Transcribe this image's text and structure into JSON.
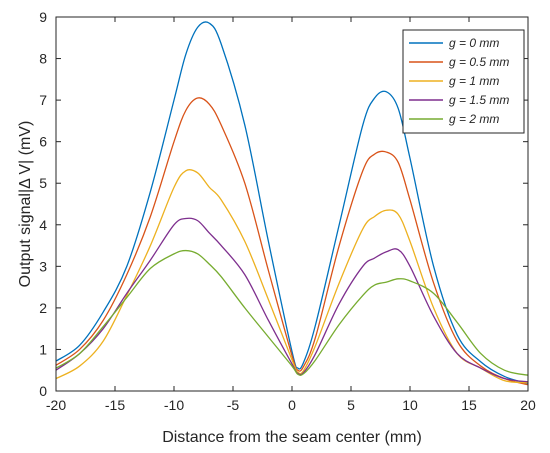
{
  "chart_data": {
    "type": "line",
    "xlabel": "Distance from the seam center (mm)",
    "ylabel": "Output signal|Δ V| (mV)",
    "xlim": [
      -20,
      20
    ],
    "ylim": [
      0,
      9
    ],
    "xticks": [
      -20,
      -15,
      -10,
      -5,
      0,
      5,
      10,
      15,
      20
    ],
    "yticks": [
      0,
      1,
      2,
      3,
      4,
      5,
      6,
      7,
      8,
      9
    ],
    "grid": false,
    "legend_position": "top-right",
    "x": [
      -20,
      -18,
      -16,
      -14,
      -12,
      -10,
      -9,
      -8,
      -7,
      -6,
      -4,
      -2,
      0,
      0.5,
      1,
      2,
      4,
      6,
      7,
      8,
      9,
      10,
      12,
      14,
      16,
      18,
      20
    ],
    "series": [
      {
        "name": "g = 0 mm",
        "color": "#0072BD",
        "values": [
          0.72,
          1.1,
          1.9,
          3.0,
          4.8,
          7.0,
          8.1,
          8.75,
          8.85,
          8.35,
          6.4,
          3.6,
          0.95,
          0.55,
          0.7,
          1.6,
          4.0,
          6.4,
          7.05,
          7.2,
          6.8,
          5.6,
          3.0,
          1.35,
          0.7,
          0.35,
          0.18
        ]
      },
      {
        "name": "g = 0.5 mm",
        "color": "#D95319",
        "values": [
          0.62,
          1.0,
          1.7,
          2.8,
          4.2,
          6.0,
          6.75,
          7.05,
          6.9,
          6.4,
          5.0,
          2.9,
          0.85,
          0.5,
          0.6,
          1.3,
          3.5,
          5.3,
          5.7,
          5.75,
          5.5,
          4.6,
          2.6,
          1.2,
          0.6,
          0.3,
          0.15
        ]
      },
      {
        "name": "g = 1 mm",
        "color": "#EDB120",
        "values": [
          0.3,
          0.6,
          1.2,
          2.3,
          3.5,
          4.9,
          5.3,
          5.25,
          4.9,
          4.6,
          3.6,
          2.2,
          0.75,
          0.45,
          0.5,
          1.1,
          2.6,
          3.9,
          4.2,
          4.35,
          4.25,
          3.6,
          2.0,
          0.9,
          0.55,
          0.25,
          0.2
        ]
      },
      {
        "name": "g = 1.5 mm",
        "color": "#7E2F8E",
        "values": [
          0.5,
          0.9,
          1.5,
          2.35,
          3.15,
          4.0,
          4.15,
          4.1,
          3.8,
          3.5,
          2.8,
          1.7,
          0.65,
          0.42,
          0.45,
          0.9,
          2.1,
          3.0,
          3.2,
          3.35,
          3.4,
          3.0,
          1.8,
          0.9,
          0.55,
          0.3,
          0.22
        ]
      },
      {
        "name": "g = 2 mm",
        "color": "#77AC30",
        "values": [
          0.55,
          0.9,
          1.55,
          2.25,
          2.95,
          3.3,
          3.38,
          3.3,
          3.05,
          2.75,
          2.0,
          1.3,
          0.6,
          0.4,
          0.42,
          0.75,
          1.6,
          2.3,
          2.55,
          2.62,
          2.7,
          2.65,
          2.35,
          1.65,
          0.9,
          0.5,
          0.38
        ]
      }
    ]
  }
}
